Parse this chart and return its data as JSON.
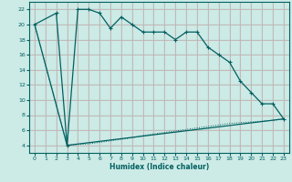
{
  "xlabel": "Humidex (Indice chaleur)",
  "background_color": "#cceae6",
  "grid_color_major": "#d4a0a0",
  "grid_color_minor": "#b8d8d4",
  "line_color": "#006060",
  "xlim": [
    -0.5,
    23.5
  ],
  "ylim": [
    3,
    23
  ],
  "yticks": [
    4,
    6,
    8,
    10,
    12,
    14,
    16,
    18,
    20,
    22
  ],
  "xticks": [
    0,
    1,
    2,
    3,
    4,
    5,
    6,
    7,
    8,
    9,
    10,
    11,
    12,
    13,
    14,
    15,
    16,
    17,
    18,
    19,
    20,
    21,
    22,
    23
  ],
  "series1_x": [
    0,
    2,
    3,
    4,
    5,
    6,
    7,
    8,
    9,
    10,
    11,
    12,
    13,
    14,
    15,
    16,
    17,
    18,
    19,
    20,
    21,
    22,
    23
  ],
  "series1_y": [
    20,
    21.5,
    4,
    22,
    22,
    21.5,
    19.5,
    21,
    20,
    19,
    19,
    19,
    18,
    19,
    19,
    17,
    16,
    15,
    12.5,
    11,
    9.5,
    9.5,
    7.5
  ],
  "series2_x": [
    0,
    3,
    23
  ],
  "series2_y": [
    20,
    4,
    7.5
  ],
  "series3_x": [
    0,
    3,
    4,
    5,
    6,
    7,
    8,
    9,
    10,
    11,
    12,
    13,
    14,
    15,
    16,
    17,
    18,
    19,
    20,
    21,
    22,
    23
  ],
  "series3_y": [
    20,
    4,
    4.1,
    4.2,
    4.4,
    4.6,
    4.8,
    5.0,
    5.3,
    5.5,
    5.7,
    5.9,
    6.1,
    6.3,
    6.5,
    6.7,
    6.9,
    7.0,
    7.1,
    7.2,
    7.3,
    7.5
  ]
}
